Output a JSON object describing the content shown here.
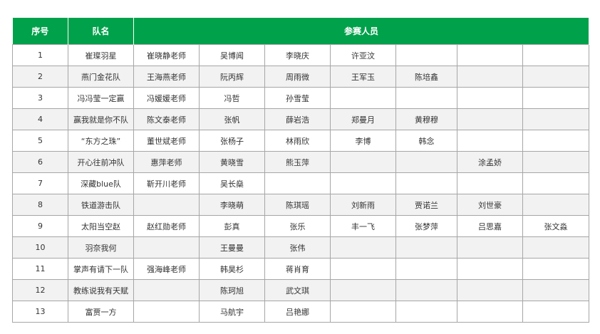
{
  "colors": {
    "header_bg": "#00a14b",
    "header_text": "#ffffff",
    "alt_row": "#f2f2f2",
    "border": "#a6a6a6"
  },
  "header": {
    "seq": "序号",
    "team": "队名",
    "members": "参赛人员"
  },
  "rows": [
    [
      "1",
      "崔璨羽星",
      "崔晓静老师",
      "吴博闻",
      "李晓庆",
      "许亚汶",
      "",
      "",
      ""
    ],
    [
      "2",
      "燕门金花队",
      "王海燕老师",
      "阮丙辉",
      "周雨微",
      "王军玉",
      "陈培鑫",
      "",
      ""
    ],
    [
      "3",
      "冯冯莹一定赢",
      "冯媛媛老师",
      "冯哲",
      "孙雪莹",
      "",
      "",
      "",
      ""
    ],
    [
      "4",
      "赢我就是你不队",
      "陈文泰老师",
      "张帆",
      "薛岩浩",
      "郑曼月",
      "黄穆穆",
      "",
      ""
    ],
    [
      "5",
      "“东方之珠”",
      "董世斌老师",
      "张杨子",
      "林雨欣",
      "李博",
      "韩念",
      "",
      ""
    ],
    [
      "6",
      "开心往前冲队",
      "惠萍老师",
      "黄晓雪",
      "熊玉萍",
      "",
      "",
      "涂孟娇",
      ""
    ],
    [
      "7",
      "深藏blue队",
      "靳开川老师",
      "吴长燊",
      "",
      "",
      "",
      "",
      ""
    ],
    [
      "8",
      "铁道游击队",
      "",
      "李晓萌",
      "陈琪瑶",
      "刘新雨",
      "贾诺兰",
      "刘世豪",
      ""
    ],
    [
      "9",
      "太阳当空赵",
      "赵红勋老师",
      "彭真",
      "张乐",
      "丰一飞",
      "张梦萍",
      "吕思嘉",
      "张文淼"
    ],
    [
      "10",
      "羽奈我何",
      "",
      "王曼曼",
      "张伟",
      "",
      "",
      "",
      ""
    ],
    [
      "11",
      "掌声有请下一队",
      "强海峰老师",
      "韩昊杉",
      "蒋肖育",
      "",
      "",
      "",
      ""
    ],
    [
      "12",
      "教练说我有天赋",
      "",
      "陈珂旭",
      "武文琪",
      "",
      "",
      "",
      ""
    ],
    [
      "13",
      "富贾一方",
      "",
      "马航宇",
      "吕艳娜",
      "",
      "",
      "",
      ""
    ]
  ]
}
